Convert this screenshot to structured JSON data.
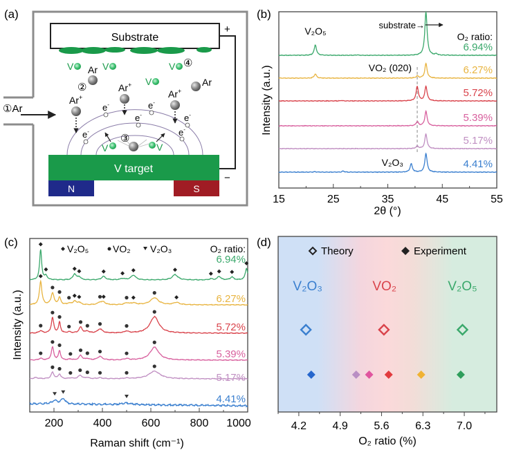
{
  "panels": {
    "a": {
      "label": "(a)"
    },
    "b": {
      "label": "(b)"
    },
    "c": {
      "label": "(c)"
    },
    "d": {
      "label": "(d)"
    }
  },
  "diagram": {
    "substrate_label": "Substrate",
    "target_label": "V target",
    "magnet_n": "N",
    "magnet_s": "S",
    "plus_sign": "+",
    "minus_sign": "−",
    "inlet_label": "①Ar",
    "step2": "②",
    "step3": "③",
    "step4": "④",
    "ar_label": "Ar",
    "ar_plus_label": "Ar",
    "plus_sup": "+",
    "v_label": "V",
    "electron_label": "e",
    "minus_sup": "-",
    "colors": {
      "film": "#1a9a4a",
      "target": "#1a9a4a",
      "magnet_n": "#1f2a8a",
      "magnet_s": "#a01c24",
      "chamber": "#8c8c8c"
    }
  },
  "chart_data": [
    {
      "panel": "b",
      "type": "line",
      "title": "",
      "xlabel": "2θ (°)",
      "ylabel": "Intensity (a.u.)",
      "xlim": [
        15,
        55
      ],
      "xticks": [
        15,
        25,
        35,
        45,
        55
      ],
      "legend_title": "O₂ ratio:",
      "series": [
        {
          "name": "6.94%",
          "color": "#3aa86b",
          "peaks": [
            {
              "x": 21.7,
              "h": 1.0
            },
            {
              "x": 42.0,
              "h": 4.2
            },
            {
              "x": 43.9,
              "h": 0.12
            },
            {
              "x": 29.4,
              "h": 0.04
            }
          ]
        },
        {
          "name": "6.27%",
          "color": "#e8b440",
          "peaks": [
            {
              "x": 21.7,
              "h": 0.4
            },
            {
              "x": 40.4,
              "h": 0.2
            },
            {
              "x": 42.0,
              "h": 1.4
            }
          ]
        },
        {
          "name": "5.72%",
          "color": "#d9434b",
          "peaks": [
            {
              "x": 40.4,
              "h": 1.4
            },
            {
              "x": 42.0,
              "h": 1.4
            },
            {
              "x": 26.5,
              "h": 0.05
            }
          ]
        },
        {
          "name": "5.39%",
          "color": "#d8609e",
          "peaks": [
            {
              "x": 40.4,
              "h": 0.4
            },
            {
              "x": 42.0,
              "h": 1.4
            }
          ]
        },
        {
          "name": "5.17%",
          "color": "#c08fc2",
          "peaks": [
            {
              "x": 40.4,
              "h": 0.25
            },
            {
              "x": 42.0,
              "h": 1.4
            }
          ]
        },
        {
          "name": "4.41%",
          "color": "#3a7fcf",
          "peaks": [
            {
              "x": 39.3,
              "h": 0.8
            },
            {
              "x": 42.0,
              "h": 1.8
            },
            {
              "x": 26.8,
              "h": 0.1
            },
            {
              "x": 21.6,
              "h": 0.04
            }
          ]
        }
      ],
      "annotations": [
        {
          "text": "V₂O₅",
          "x": 21.7
        },
        {
          "text": "substrate→",
          "x": 42.0
        },
        {
          "text": "VO₂ (020)",
          "x": 40.4
        },
        {
          "text": "V₂O₃",
          "x": 39.3
        }
      ],
      "reference_line_x": 40.4
    },
    {
      "panel": "c",
      "type": "line",
      "title": "",
      "xlabel": "Raman shift (cm⁻¹)",
      "ylabel": "Intensity (a.u.)",
      "xlim": [
        100,
        1000
      ],
      "xticks": [
        200,
        400,
        600,
        800,
        1000
      ],
      "legend_title": "O₂ ratio:",
      "legend_markers": [
        {
          "symbol": "diamond",
          "label": "V₂O₅"
        },
        {
          "symbol": "circle",
          "label": "VO₂"
        },
        {
          "symbol": "triangle",
          "label": "V₂O₃"
        }
      ],
      "series": [
        {
          "name": "6.94%",
          "color": "#3aa86b",
          "peaks": [
            {
              "x": 145,
              "h": 2.6,
              "w": 5
            },
            {
              "x": 167,
              "h": 0.35,
              "w": 6
            },
            {
              "x": 285,
              "h": 0.5,
              "w": 8
            },
            {
              "x": 304,
              "h": 0.25,
              "w": 8
            },
            {
              "x": 405,
              "h": 0.3,
              "w": 10
            },
            {
              "x": 483,
              "h": 0.12,
              "w": 10
            },
            {
              "x": 528,
              "h": 0.4,
              "w": 12
            },
            {
              "x": 700,
              "h": 0.45,
              "w": 14
            },
            {
              "x": 848,
              "h": 0.1,
              "w": 8
            },
            {
              "x": 882,
              "h": 0.3,
              "w": 8
            },
            {
              "x": 935,
              "h": 0.25,
              "w": 8
            },
            {
              "x": 995,
              "h": 1.0,
              "w": 6
            }
          ],
          "markers": {
            "diamond": [
              145,
              167,
              285,
              304,
              405,
              483,
              528,
              700,
              848,
              882,
              935,
              995
            ]
          }
        },
        {
          "name": "6.27%",
          "color": "#e8b440",
          "peaks": [
            {
              "x": 145,
              "h": 2.0,
              "w": 6
            },
            {
              "x": 194,
              "h": 1.0,
              "w": 7
            },
            {
              "x": 223,
              "h": 0.6,
              "w": 6
            },
            {
              "x": 262,
              "h": 0.12,
              "w": 8
            },
            {
              "x": 285,
              "h": 0.3,
              "w": 8
            },
            {
              "x": 304,
              "h": 0.2,
              "w": 8
            },
            {
              "x": 390,
              "h": 0.2,
              "w": 10
            },
            {
              "x": 405,
              "h": 0.2,
              "w": 10
            },
            {
              "x": 500,
              "h": 0.15,
              "w": 10
            },
            {
              "x": 528,
              "h": 0.15,
              "w": 12
            },
            {
              "x": 615,
              "h": 0.6,
              "w": 20
            },
            {
              "x": 706,
              "h": 0.2,
              "w": 14
            }
          ],
          "markers": {
            "circle": [
              194,
              223,
              262,
              390,
              500,
              615
            ],
            "diamond": [
              145,
              285,
              304,
              405,
              528,
              706
            ]
          }
        },
        {
          "name": "5.72%",
          "color": "#d9434b",
          "peaks": [
            {
              "x": 145,
              "h": 0.2,
              "w": 8
            },
            {
              "x": 194,
              "h": 1.3,
              "w": 6
            },
            {
              "x": 223,
              "h": 0.9,
              "w": 5
            },
            {
              "x": 262,
              "h": 0.1,
              "w": 8
            },
            {
              "x": 310,
              "h": 0.5,
              "w": 8
            },
            {
              "x": 338,
              "h": 0.15,
              "w": 8
            },
            {
              "x": 390,
              "h": 0.35,
              "w": 12
            },
            {
              "x": 500,
              "h": 0.15,
              "w": 10
            },
            {
              "x": 615,
              "h": 1.4,
              "w": 22
            }
          ],
          "markers": {
            "circle": [
              145,
              194,
              223,
              262,
              310,
              338,
              390,
              500,
              615
            ]
          }
        },
        {
          "name": "5.39%",
          "color": "#d8609e",
          "peaks": [
            {
              "x": 145,
              "h": 0.15,
              "w": 8
            },
            {
              "x": 194,
              "h": 1.1,
              "w": 6
            },
            {
              "x": 223,
              "h": 0.8,
              "w": 5
            },
            {
              "x": 268,
              "h": 0.08,
              "w": 8
            },
            {
              "x": 310,
              "h": 0.4,
              "w": 8
            },
            {
              "x": 338,
              "h": 0.12,
              "w": 8
            },
            {
              "x": 390,
              "h": 0.3,
              "w": 12
            },
            {
              "x": 500,
              "h": 0.12,
              "w": 10
            },
            {
              "x": 615,
              "h": 1.1,
              "w": 22
            }
          ],
          "markers": {
            "circle": [
              145,
              194,
              223,
              268,
              310,
              338,
              390,
              500,
              615
            ]
          }
        },
        {
          "name": "5.17%",
          "color": "#c08fc2",
          "peaks": [
            {
              "x": 125,
              "h": 0.1,
              "w": 10
            },
            {
              "x": 194,
              "h": 0.55,
              "w": 7
            },
            {
              "x": 223,
              "h": 0.4,
              "w": 6
            },
            {
              "x": 268,
              "h": 0.06,
              "w": 8
            },
            {
              "x": 308,
              "h": 0.3,
              "w": 9
            },
            {
              "x": 338,
              "h": 0.1,
              "w": 8
            },
            {
              "x": 390,
              "h": 0.08,
              "w": 12
            },
            {
              "x": 500,
              "h": 0.06,
              "w": 10
            },
            {
              "x": 615,
              "h": 0.65,
              "w": 28
            }
          ],
          "markers": {
            "circle": [
              194,
              223,
              268,
              308,
              338,
              390,
              500,
              615
            ]
          }
        },
        {
          "name": "4.41%",
          "color": "#3a7fcf",
          "peaks": [
            {
              "x": 203,
              "h": 0.3,
              "w": 12
            },
            {
              "x": 238,
              "h": 0.45,
              "w": 10
            },
            {
              "x": 500,
              "h": 0.12,
              "w": 25
            }
          ],
          "markers": {
            "triangle": [
              203,
              238,
              500
            ]
          }
        }
      ]
    },
    {
      "panel": "d",
      "type": "scatter",
      "title": "",
      "xlabel": "O₂ ratio (%)",
      "ylabel": "",
      "xlim": [
        3.85,
        7.55
      ],
      "xticks": [
        4.2,
        4.9,
        5.6,
        6.3,
        7.0
      ],
      "legend": [
        {
          "symbol": "open-diamond",
          "label": "Theory"
        },
        {
          "symbol": "filled-diamond",
          "label": "Experiment"
        }
      ],
      "legend_placement": "top",
      "regions": [
        {
          "label": "V₂O₃",
          "label_x": 4.35,
          "color": "#3a7fcf",
          "bg": "#cfe0f6"
        },
        {
          "label": "VO₂",
          "label_x": 5.65,
          "color": "#d9434b",
          "bg": "#fbd9da"
        },
        {
          "label": "V₂O₅",
          "label_x": 6.97,
          "color": "#3aa86b",
          "bg": "#d6ecdf"
        }
      ],
      "theory": [
        {
          "x": 4.32,
          "color": "#3a7fcf"
        },
        {
          "x": 5.64,
          "color": "#d9434b"
        },
        {
          "x": 6.97,
          "color": "#3aa86b"
        }
      ],
      "experiment": [
        {
          "x": 4.41,
          "color": "#2566cc"
        },
        {
          "x": 5.17,
          "color": "#b98fc4"
        },
        {
          "x": 5.39,
          "color": "#e0559f"
        },
        {
          "x": 5.72,
          "color": "#e23b3e"
        },
        {
          "x": 6.27,
          "color": "#f0b233"
        },
        {
          "x": 6.94,
          "color": "#2f9e5c"
        }
      ]
    }
  ]
}
